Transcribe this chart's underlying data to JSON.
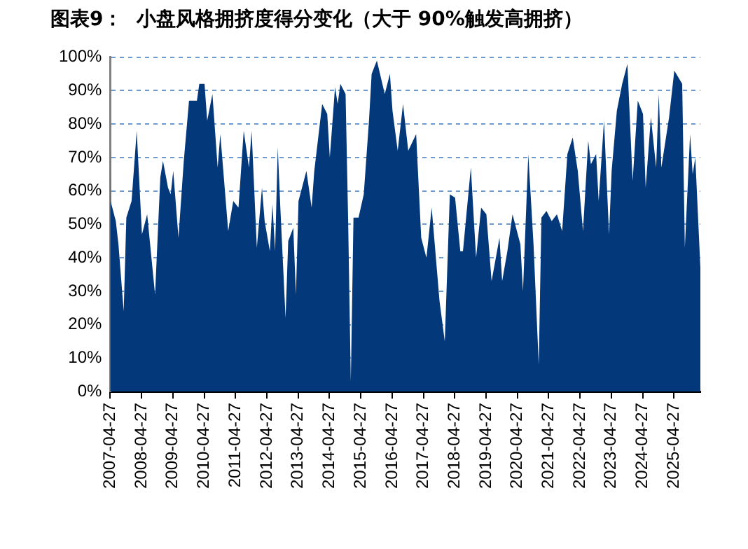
{
  "chart_data": {
    "type": "area",
    "title": "图表9：  小盘风格拥挤度得分变化（大于 90%触发高拥挤）",
    "x": [
      "2007-04-27",
      "2007-05",
      "2007-07",
      "2007-08",
      "2007-10",
      "2007-11",
      "2008-01",
      "2008-03",
      "2008-05",
      "2008-07",
      "2008-10",
      "2008-12",
      "2009-01",
      "2009-03",
      "2009-04",
      "2009-05",
      "2009-07",
      "2009-09",
      "2009-11",
      "2010-02",
      "2010-03",
      "2010-05",
      "2010-06",
      "2010-08",
      "2010-10",
      "2010-11",
      "2011-02",
      "2011-04",
      "2011-06",
      "2011-08",
      "2011-10",
      "2011-11",
      "2012-01",
      "2012-03",
      "2012-04",
      "2012-06",
      "2012-07",
      "2012-08",
      "2012-09",
      "2012-10",
      "2012-12",
      "2013-01",
      "2013-03",
      "2013-04",
      "2013-05",
      "2013-08",
      "2013-10",
      "2013-11",
      "2014-02",
      "2014-04",
      "2014-05",
      "2014-07",
      "2014-08",
      "2014-09",
      "2014-11",
      "2014-12",
      "2015-01",
      "2015-02",
      "2015-04",
      "2015-06",
      "2015-08",
      "2015-09",
      "2015-11",
      "2016-02",
      "2016-04",
      "2016-05",
      "2016-07",
      "2016-09",
      "2016-11",
      "2017-02",
      "2017-04",
      "2017-06",
      "2017-08",
      "2017-11",
      "2018-01",
      "2018-03",
      "2018-05",
      "2018-07",
      "2018-08",
      "2018-11",
      "2019-01",
      "2019-03",
      "2019-05",
      "2019-07",
      "2019-10",
      "2019-11",
      "2020-01",
      "2020-03",
      "2020-06",
      "2020-07",
      "2020-09",
      "2020-11",
      "2021-01",
      "2021-02",
      "2021-04",
      "2021-06",
      "2021-08",
      "2021-10",
      "2021-12",
      "2022-02",
      "2022-04",
      "2022-06",
      "2022-08",
      "2022-09",
      "2022-11",
      "2022-12",
      "2023-02",
      "2023-04",
      "2023-05",
      "2023-07",
      "2023-09",
      "2023-11",
      "2024-01",
      "2024-03",
      "2024-05",
      "2024-06",
      "2024-08",
      "2024-10",
      "2024-11",
      "2024-12",
      "2025-03",
      "2025-05",
      "2025-08",
      "2025-09",
      "2025-11",
      "2025-12",
      "2026-01",
      "2026-03"
    ],
    "series": [
      {
        "color": "#03387a",
        "values": [
          73,
          57,
          51,
          44,
          24,
          52,
          57,
          78,
          47,
          53,
          29,
          64,
          69,
          61,
          59,
          66,
          46,
          69,
          87,
          87,
          92,
          92,
          81,
          89,
          67,
          77,
          48,
          57,
          55,
          78,
          67,
          78,
          43,
          61,
          51,
          42,
          56,
          42,
          73,
          55,
          22,
          45,
          49,
          29,
          57,
          66,
          55,
          66,
          86,
          83,
          70,
          91,
          86,
          92,
          89,
          51,
          3,
          52,
          52,
          59,
          81,
          95,
          99,
          89,
          95,
          84,
          72,
          86,
          72,
          77,
          46,
          40,
          55,
          27,
          15,
          59,
          58,
          42,
          42,
          67,
          40,
          55,
          53,
          33,
          46,
          33,
          42,
          53,
          44,
          30,
          71,
          44,
          8,
          52,
          54,
          51,
          53,
          48,
          71,
          76,
          66,
          48,
          75,
          68,
          71,
          57,
          81,
          47,
          66,
          84,
          92,
          98,
          63,
          87,
          83,
          61,
          82,
          67,
          89,
          67,
          82,
          96,
          92,
          43,
          77,
          65,
          70,
          37
        ]
      }
    ],
    "xlim": [
      "2007-04-27",
      "2026-03"
    ],
    "xticks": [
      "2007-04-27",
      "2008-04-27",
      "2009-04-27",
      "2010-04-27",
      "2011-04-27",
      "2012-04-27",
      "2013-04-27",
      "2014-04-27",
      "2015-04-27",
      "2016-04-27",
      "2017-04-27",
      "2018-04-27",
      "2019-04-27",
      "2020-04-27",
      "2021-04-27",
      "2022-04-27",
      "2023-04-27",
      "2024-04-27",
      "2025-04-27"
    ],
    "ylim": [
      0,
      100
    ],
    "yticks": [
      {
        "value": 0,
        "label": "0%"
      },
      {
        "value": 10,
        "label": "10%"
      },
      {
        "value": 20,
        "label": "20%"
      },
      {
        "value": 30,
        "label": "30%"
      },
      {
        "value": 40,
        "label": "40%"
      },
      {
        "value": 50,
        "label": "50%"
      },
      {
        "value": 60,
        "label": "60%"
      },
      {
        "value": 70,
        "label": "70%"
      },
      {
        "value": 80,
        "label": "80%"
      },
      {
        "value": 90,
        "label": "90%"
      },
      {
        "value": 100,
        "label": "100%"
      }
    ],
    "grid": "y"
  }
}
